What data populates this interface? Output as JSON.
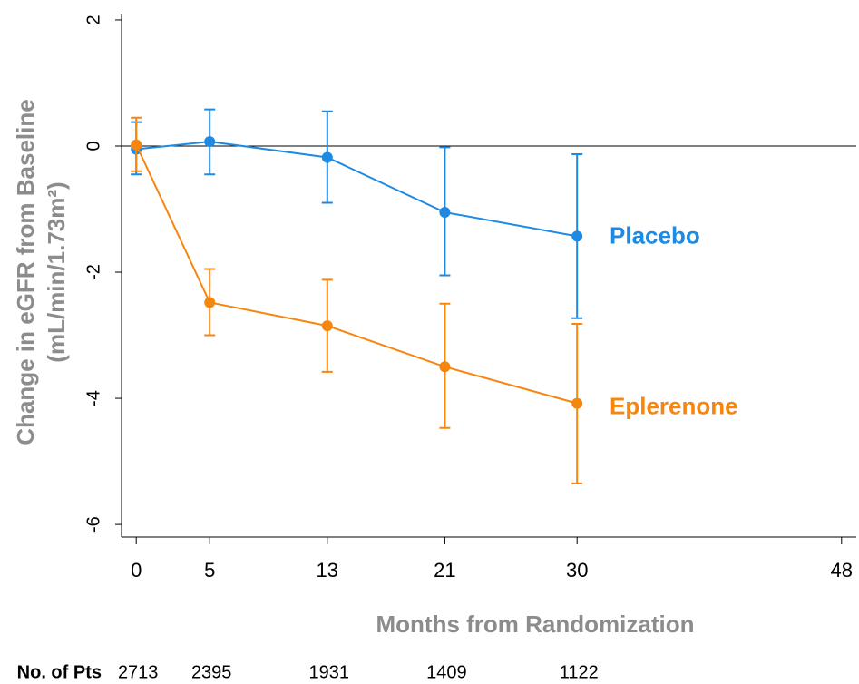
{
  "chart_data": {
    "type": "line",
    "y_label": [
      "Change in eGFR from Baseline",
      "(mL/min/1.73m²)"
    ],
    "x_label": "Months from Randomization",
    "x": [
      0,
      5,
      13,
      21,
      30
    ],
    "series": [
      {
        "name": "Placebo",
        "color": "#1f8ae3",
        "values": [
          -0.05,
          0.07,
          -0.18,
          -1.05,
          -1.43
        ],
        "lower": [
          -0.45,
          -0.45,
          -0.9,
          -2.05,
          -2.73
        ],
        "upper": [
          0.38,
          0.58,
          0.55,
          -0.02,
          -0.13
        ]
      },
      {
        "name": "Eplerenone",
        "color": "#f7860f",
        "values": [
          0.02,
          -2.48,
          -2.85,
          -3.5,
          -4.08
        ],
        "lower": [
          -0.4,
          -3.0,
          -3.58,
          -4.47,
          -5.35
        ],
        "upper": [
          0.45,
          -1.95,
          -2.12,
          -2.5,
          -2.82
        ]
      }
    ],
    "reference_line": 0,
    "xlim": [
      -1,
      49
    ],
    "xticks": [
      0,
      5,
      13,
      21,
      30,
      48
    ],
    "ylim": [
      -6.2,
      2.1
    ],
    "yticks": [
      2,
      0,
      -2,
      -4,
      -6
    ],
    "at_risk": {
      "label": "No. of Pts",
      "values": [
        2713,
        2395,
        1931,
        1409,
        1122
      ]
    }
  }
}
